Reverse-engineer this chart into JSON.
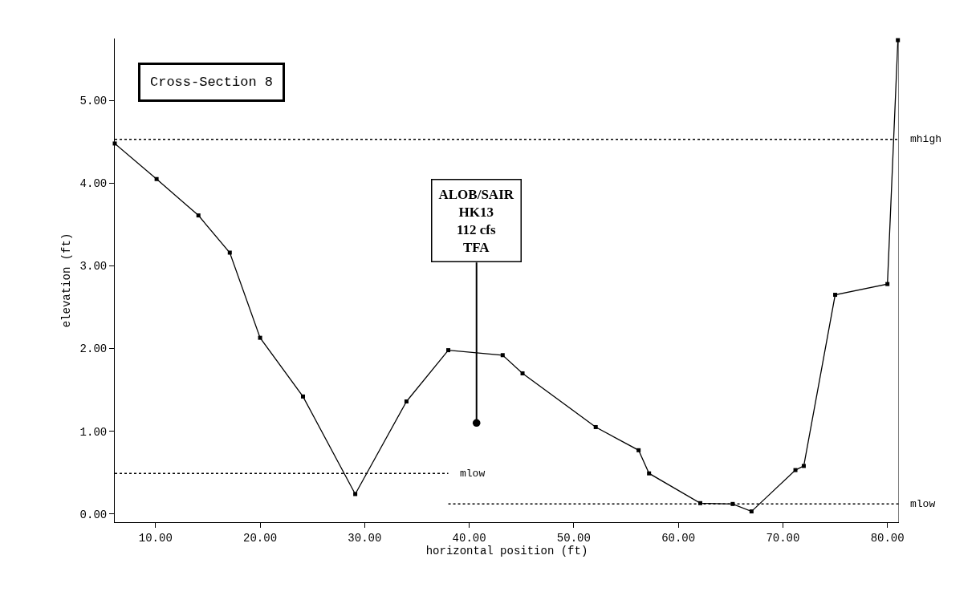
{
  "chart_data": {
    "type": "line",
    "xlabel": "horizontal position (ft)",
    "ylabel": "elevation (ft)",
    "annotations": [
      "Cross-Section 8",
      {
        "text": "ALOB/SAIR\nHK13\n112 cfs\nTFA",
        "x": 40.7,
        "y": 1.1
      }
    ],
    "series": [
      {
        "color": "#000000",
        "marker": "square",
        "line_style": "solid",
        "x": [
          6.1,
          10.1,
          14.1,
          17.1,
          20.0,
          24.1,
          29.1,
          34.0,
          38.0,
          43.2,
          45.1,
          52.1,
          56.2,
          57.2,
          62.1,
          65.2,
          67.0,
          71.2,
          72.0,
          75.0,
          80.0,
          81.0
        ],
        "values": [
          4.48,
          4.05,
          3.61,
          3.16,
          2.13,
          1.42,
          0.24,
          1.36,
          1.98,
          1.92,
          1.7,
          1.05,
          0.77,
          0.49,
          0.13,
          0.12,
          0.03,
          0.53,
          0.58,
          2.65,
          2.78,
          5.73
        ]
      },
      {
        "name": "mhigh",
        "color": "#000000",
        "marker": "none",
        "line_style": "dotted",
        "x": [
          6.1,
          81.1
        ],
        "values": [
          4.53,
          4.53
        ]
      },
      {
        "name": "mlow",
        "color": "#000000",
        "marker": "none",
        "line_style": "dotted",
        "x": [
          6.1,
          38.0
        ],
        "values": [
          0.49,
          0.49
        ]
      },
      {
        "name": "mlow",
        "color": "#000000",
        "marker": "none",
        "line_style": "dotted",
        "x": [
          38.0,
          81.1
        ],
        "values": [
          0.12,
          0.12
        ]
      }
    ],
    "xlim": [
      6.1,
      81.1
    ],
    "ylim": [
      -0.1,
      5.75
    ],
    "xticks": [
      {
        "value": 10,
        "label": "10.00"
      },
      {
        "value": 20,
        "label": "20.00"
      },
      {
        "value": 30,
        "label": "30.00"
      },
      {
        "value": 40,
        "label": "40.00"
      },
      {
        "value": 50,
        "label": "50.00"
      },
      {
        "value": 60,
        "label": "60.00"
      },
      {
        "value": 70,
        "label": "70.00"
      },
      {
        "value": 80,
        "label": "80.00"
      }
    ],
    "yticks": [
      {
        "value": 0,
        "label": "0.00"
      },
      {
        "value": 1,
        "label": "1.00"
      },
      {
        "value": 2,
        "label": "2.00"
      },
      {
        "value": 3,
        "label": "3.00"
      },
      {
        "value": 4,
        "label": "4.00"
      },
      {
        "value": 5,
        "label": "5.00"
      }
    ],
    "legend": false
  }
}
